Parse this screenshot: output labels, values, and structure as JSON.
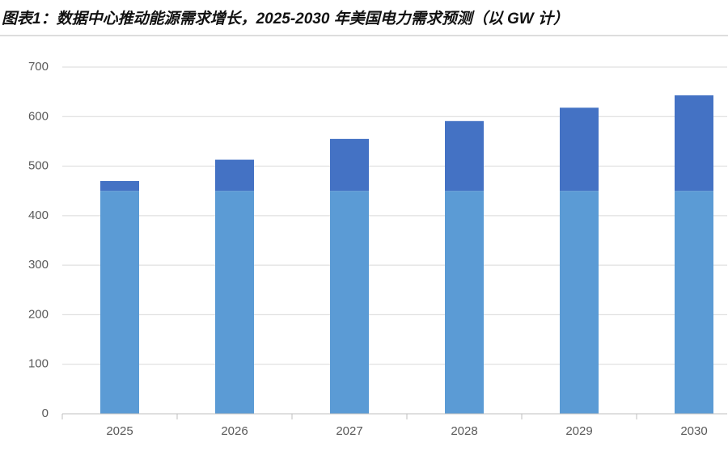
{
  "chart_data": {
    "type": "stacked_bar",
    "title": "图表1：数据中心推动能源需求增长，2025-2030 年美国电力需求预测（以 GW 计）",
    "categories": [
      "2025",
      "2026",
      "2027",
      "2028",
      "2029",
      "2030"
    ],
    "series": [
      {
        "color": "#5b9bd5",
        "values": [
          450,
          450,
          450,
          450,
          450,
          450
        ]
      },
      {
        "color": "#4472c4",
        "values": [
          20,
          63,
          105,
          141,
          168,
          193
        ]
      }
    ],
    "ylim": [
      0,
      700
    ],
    "yticks": [
      0,
      100,
      200,
      300,
      400,
      500,
      600,
      700
    ],
    "grid": true
  }
}
